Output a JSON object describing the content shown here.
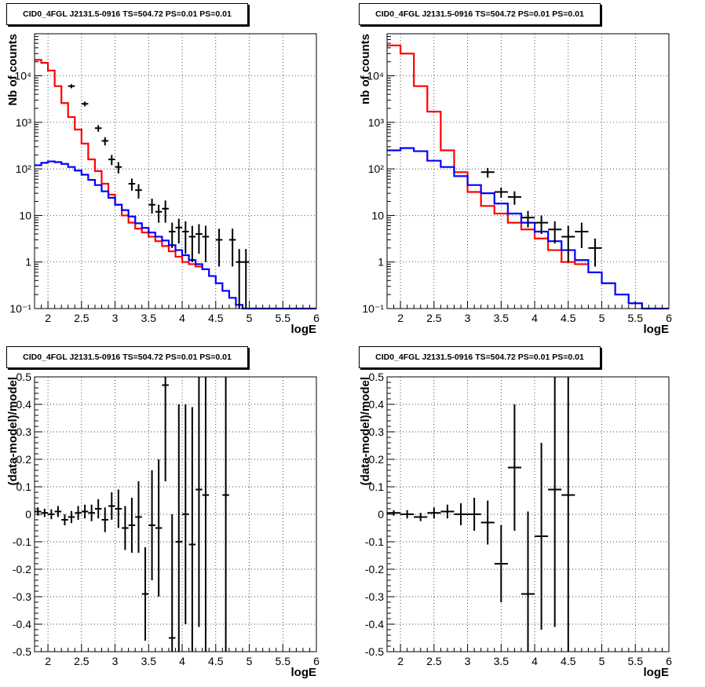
{
  "chart_data": [
    {
      "type": "line",
      "title": "CID0_4FGL J2131.5-0916 TS=504.72 PS=0.01 PS=0.01",
      "xlabel": "logE",
      "ylabel": "Nb of counts",
      "yscale": "log",
      "xlim": [
        1.8,
        6.0
      ],
      "ylim": [
        0.1,
        80000
      ],
      "grid": true,
      "xticks": [
        "2",
        "2.5",
        "3",
        "3.5",
        "4",
        "4.5",
        "5",
        "5.5",
        "6"
      ],
      "yticks": [
        "10⁻¹",
        "1",
        "10",
        "10²",
        "10³",
        "10⁴"
      ],
      "series": [
        {
          "color": "#ff0000",
          "type": "step",
          "x0": 1.8,
          "dx": 0.1,
          "values": [
            22000,
            19000,
            13000,
            6000,
            2600,
            1300,
            700,
            350,
            160,
            90,
            48,
            28,
            17,
            10,
            7,
            5.2,
            4.3,
            3.5,
            2.8,
            2.2,
            1.7,
            1.3,
            1.0,
            0.9,
            0.8
          ]
        },
        {
          "color": "#0000ff",
          "type": "step",
          "x0": 1.8,
          "dx": 0.1,
          "values": [
            120,
            135,
            145,
            140,
            128,
            110,
            92,
            75,
            58,
            45,
            33,
            24,
            17,
            13,
            9.5,
            6.8,
            5.4,
            4.3,
            3.5,
            2.9,
            2.3,
            1.8,
            1.4,
            1.1,
            0.9,
            0.7,
            0.5,
            0.35,
            0.24,
            0.17,
            0.12,
            0.1,
            0.1,
            0.1,
            0.1,
            0.1,
            0.1,
            0.1,
            0.1,
            0.1,
            0.1,
            0.1
          ]
        },
        {
          "color": "#000000",
          "type": "errorbar",
          "hw": 0.05,
          "points": [
            [
              2.35,
              6000,
              600
            ],
            [
              2.55,
              2500,
              300
            ],
            [
              2.75,
              750,
              120
            ],
            [
              2.85,
              400,
              80
            ],
            [
              2.95,
              160,
              40
            ],
            [
              3.05,
              110,
              30
            ],
            [
              3.25,
              48,
              14
            ],
            [
              3.35,
              35,
              12
            ],
            [
              3.55,
              17,
              6
            ],
            [
              3.65,
              12,
              5
            ],
            [
              3.75,
              14,
              7
            ],
            [
              3.85,
              4.5,
              2.5
            ],
            [
              3.95,
              5.5,
              3
            ],
            [
              4.05,
              4.5,
              3
            ],
            [
              4.15,
              3.5,
              2.5
            ],
            [
              4.25,
              4.0,
              2.5
            ],
            [
              4.35,
              3.5,
              2.5
            ],
            [
              4.55,
              3.0,
              2.2
            ],
            [
              4.75,
              3.0,
              2.2
            ],
            [
              4.85,
              1.0,
              0.9
            ],
            [
              4.95,
              1.0,
              0.9
            ]
          ]
        }
      ]
    },
    {
      "type": "line",
      "title": "CID0_4FGL J2131.5-0916 TS=504.72 PS=0.01 PS=0.01",
      "xlabel": "logE",
      "ylabel": "nb of counts",
      "yscale": "log",
      "xlim": [
        1.8,
        6.0
      ],
      "ylim": [
        0.1,
        80000
      ],
      "grid": true,
      "xticks": [
        "2",
        "2.5",
        "3",
        "3.5",
        "4",
        "4.5",
        "5",
        "5.5",
        "6"
      ],
      "yticks": [
        "10⁻¹",
        "1",
        "10",
        "10²",
        "10³",
        "10⁴"
      ],
      "series": [
        {
          "color": "#ff0000",
          "type": "step",
          "x0": 1.8,
          "dx": 0.2,
          "values": [
            45000,
            30000,
            6000,
            1700,
            250,
            85,
            32,
            16,
            11,
            7,
            5,
            3.2,
            1.8,
            1.0,
            0.9
          ]
        },
        {
          "color": "#0000ff",
          "type": "step",
          "x0": 1.8,
          "dx": 0.2,
          "values": [
            250,
            280,
            240,
            150,
            110,
            70,
            45,
            30,
            18,
            11,
            7,
            4.5,
            2.8,
            1.8,
            1.1,
            0.6,
            0.35,
            0.2,
            0.13,
            0.1,
            0.1,
            0.1
          ]
        },
        {
          "color": "#000000",
          "type": "errorbar",
          "hw": 0.1,
          "points": [
            [
              3.3,
              85,
              20
            ],
            [
              3.5,
              32,
              8
            ],
            [
              3.7,
              25,
              8
            ],
            [
              3.9,
              9,
              3.5
            ],
            [
              4.1,
              7,
              3
            ],
            [
              4.3,
              5,
              2.5
            ],
            [
              4.5,
              3.5,
              2.5
            ],
            [
              4.7,
              4.5,
              2.5
            ],
            [
              4.9,
              2.0,
              1.2
            ]
          ]
        }
      ]
    },
    {
      "type": "scatter",
      "title": "CID0_4FGL J2131.5-0916 TS=504.72 PS=0.01 PS=0.01",
      "xlabel": "logE",
      "ylabel": "(data-model)/model",
      "xlim": [
        1.8,
        6.0
      ],
      "ylim": [
        -0.5,
        0.5
      ],
      "grid": true,
      "xticks": [
        "2",
        "2.5",
        "3",
        "3.5",
        "4",
        "4.5",
        "5",
        "5.5",
        "6"
      ],
      "yticks": [
        "-0.5",
        "-0.4",
        "-0.3",
        "-0.2",
        "-0.1",
        "0",
        "0.1",
        "0.2",
        "0.3",
        "0.4",
        "0.5"
      ],
      "series": [
        {
          "color": "#000000",
          "type": "errorbar",
          "hw": 0.05,
          "points": [
            [
              1.85,
              0.01,
              0.015
            ],
            [
              1.95,
              0.005,
              0.015
            ],
            [
              2.05,
              0.0,
              0.018
            ],
            [
              2.15,
              0.01,
              0.02
            ],
            [
              2.25,
              -0.02,
              0.02
            ],
            [
              2.35,
              -0.01,
              0.022
            ],
            [
              2.45,
              0.005,
              0.025
            ],
            [
              2.55,
              0.01,
              0.025
            ],
            [
              2.65,
              0.005,
              0.03
            ],
            [
              2.75,
              0.02,
              0.035
            ],
            [
              2.85,
              -0.02,
              0.045
            ],
            [
              2.95,
              0.03,
              0.05
            ],
            [
              3.05,
              0.02,
              0.07
            ],
            [
              3.15,
              -0.05,
              0.08
            ],
            [
              3.25,
              -0.04,
              0.1
            ],
            [
              3.35,
              -0.01,
              0.13
            ],
            [
              3.45,
              -0.29,
              0.17
            ],
            [
              3.55,
              -0.04,
              0.2
            ],
            [
              3.65,
              -0.05,
              0.25
            ],
            [
              3.75,
              0.47,
              0.35
            ],
            [
              3.85,
              -0.45,
              0.45
            ],
            [
              3.95,
              -0.1,
              0.5
            ],
            [
              4.05,
              0.0,
              0.4
            ],
            [
              4.15,
              -0.11,
              0.5
            ],
            [
              4.25,
              0.09,
              0.5
            ],
            [
              4.35,
              0.07,
              0.6
            ],
            [
              4.65,
              0.07,
              0.6
            ]
          ]
        }
      ]
    },
    {
      "type": "scatter",
      "title": "CID0_4FGL J2131.5-0916 TS=504.72 PS=0.01 PS=0.01",
      "xlabel": "logE",
      "ylabel": "(data-model)/model",
      "xlim": [
        1.8,
        6.0
      ],
      "ylim": [
        -0.5,
        0.5
      ],
      "grid": true,
      "xticks": [
        "2",
        "2.5",
        "3",
        "3.5",
        "4",
        "4.5",
        "5",
        "5.5",
        "6"
      ],
      "yticks": [
        "-0.5",
        "-0.4",
        "-0.3",
        "-0.2",
        "-0.1",
        "0",
        "0.1",
        "0.2",
        "0.3",
        "0.4",
        "0.5"
      ],
      "series": [
        {
          "color": "#000000",
          "type": "errorbar",
          "hw": 0.1,
          "points": [
            [
              1.9,
              0.005,
              0.01
            ],
            [
              2.1,
              0.0,
              0.015
            ],
            [
              2.3,
              -0.01,
              0.015
            ],
            [
              2.5,
              0.005,
              0.02
            ],
            [
              2.7,
              0.01,
              0.025
            ],
            [
              2.9,
              0.0,
              0.04
            ],
            [
              3.1,
              0.0,
              0.06
            ],
            [
              3.3,
              -0.03,
              0.08
            ],
            [
              3.5,
              -0.18,
              0.14
            ],
            [
              3.7,
              0.17,
              0.23
            ],
            [
              3.9,
              -0.29,
              0.3
            ],
            [
              4.1,
              -0.08,
              0.34
            ],
            [
              4.3,
              0.09,
              0.5
            ],
            [
              4.5,
              0.07,
              0.6
            ]
          ]
        }
      ]
    }
  ]
}
